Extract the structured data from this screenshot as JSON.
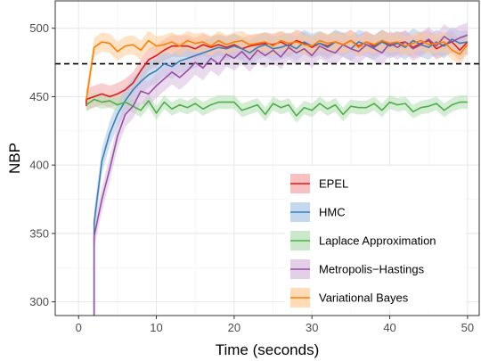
{
  "chart_data": {
    "type": "line",
    "title": "",
    "xlabel": "Time (seconds)",
    "ylabel": "NBP",
    "xlim": [
      -3,
      51.5
    ],
    "ylim": [
      290,
      520
    ],
    "xticks": [
      0,
      10,
      20,
      30,
      40,
      50
    ],
    "yticks": [
      300,
      350,
      400,
      450,
      500
    ],
    "grid": true,
    "legend_position": "bottom-right",
    "reference_line": {
      "y": 474,
      "style": "dashed",
      "color": "#000000"
    },
    "series": [
      {
        "name": "EPEL",
        "color": "#e41a1c",
        "band_color": "#f4a6a7",
        "x": [
          1,
          2,
          3,
          4,
          5,
          6,
          7,
          8,
          9,
          10,
          11,
          12,
          13,
          14,
          15,
          16,
          17,
          18,
          19,
          20,
          21,
          22,
          23,
          24,
          25,
          26,
          27,
          28,
          29,
          30,
          31,
          32,
          33,
          34,
          35,
          36,
          37,
          38,
          39,
          40,
          41,
          42,
          43,
          44,
          45,
          46,
          47,
          48,
          49,
          50
        ],
        "y": [
          448,
          450,
          452,
          450,
          452,
          455,
          460,
          469,
          477,
          480,
          484,
          487,
          487,
          487,
          485,
          488,
          486,
          488,
          486,
          488,
          485,
          487,
          488,
          489,
          488,
          490,
          487,
          491,
          489,
          486,
          489,
          487,
          490,
          488,
          491,
          487,
          490,
          487,
          491,
          488,
          489,
          490,
          486,
          489,
          491,
          485,
          488,
          490,
          484,
          490
        ],
        "band": 8
      },
      {
        "name": "HMC",
        "color": "#377eb8",
        "band_color": "#a9c7e6",
        "x": [
          2,
          3,
          4,
          5,
          6,
          7,
          8,
          9,
          10,
          11,
          12,
          13,
          14,
          15,
          16,
          17,
          18,
          19,
          20,
          21,
          22,
          23,
          24,
          25,
          26,
          27,
          28,
          29,
          30,
          31,
          32,
          33,
          34,
          35,
          36,
          37,
          38,
          39,
          40,
          41,
          42,
          43,
          44,
          45,
          46,
          47,
          48,
          49,
          50
        ],
        "y": [
          358,
          403,
          423,
          437,
          447,
          455,
          461,
          466,
          469,
          474,
          472,
          476,
          478,
          480,
          482,
          484,
          486,
          485,
          487,
          485,
          482,
          486,
          488,
          485,
          486,
          488,
          485,
          490,
          487,
          489,
          486,
          490,
          488,
          485,
          490,
          488,
          486,
          490,
          487,
          489,
          486,
          491,
          488,
          486,
          490,
          487,
          492,
          489,
          490
        ],
        "band": 9
      },
      {
        "name": "Laplace Approximation",
        "color": "#4daf4a",
        "band_color": "#b5dfb3",
        "x": [
          1,
          2,
          3,
          4,
          5,
          6,
          7,
          8,
          9,
          10,
          11,
          12,
          13,
          14,
          15,
          16,
          17,
          18,
          19,
          20,
          21,
          22,
          23,
          24,
          25,
          26,
          27,
          28,
          29,
          30,
          31,
          32,
          33,
          34,
          35,
          36,
          37,
          38,
          39,
          40,
          41,
          42,
          43,
          44,
          45,
          46,
          47,
          48,
          49,
          50
        ],
        "y": [
          444,
          448,
          446,
          447,
          444,
          446,
          443,
          440,
          447,
          438,
          446,
          441,
          444,
          442,
          445,
          441,
          444,
          446,
          446,
          446,
          440,
          442,
          444,
          437,
          445,
          442,
          444,
          436,
          442,
          440,
          445,
          441,
          444,
          437,
          443,
          442,
          442,
          445,
          440,
          446,
          444,
          445,
          439,
          442,
          443,
          445,
          440,
          444,
          446,
          446
        ],
        "band": 5
      },
      {
        "name": "Metropolis−Hastings",
        "color": "#984ea3",
        "band_color": "#d9bbdf",
        "x": [
          2,
          3,
          4,
          5,
          6,
          7,
          8,
          9,
          10,
          11,
          12,
          13,
          14,
          15,
          16,
          17,
          18,
          19,
          20,
          21,
          22,
          23,
          24,
          25,
          26,
          27,
          28,
          29,
          30,
          31,
          32,
          33,
          34,
          35,
          36,
          37,
          38,
          39,
          40,
          41,
          42,
          43,
          44,
          45,
          46,
          47,
          48,
          49,
          50
        ],
        "y": [
          348,
          375,
          397,
          421,
          437,
          443,
          454,
          452,
          458,
          463,
          468,
          464,
          469,
          475,
          471,
          478,
          474,
          481,
          478,
          483,
          477,
          484,
          480,
          484,
          479,
          486,
          482,
          485,
          480,
          487,
          484,
          482,
          488,
          485,
          483,
          488,
          485,
          482,
          489,
          486,
          490,
          485,
          488,
          492,
          487,
          494,
          490,
          493,
          495
        ],
        "band": 9
      },
      {
        "name": "Variational Bayes",
        "color": "#ff7f00",
        "band_color": "#ffcc99",
        "x": [
          1,
          2,
          3,
          4,
          5,
          6,
          7,
          8,
          9,
          10,
          11,
          12,
          13,
          14,
          15,
          16,
          17,
          18,
          19,
          20,
          21,
          22,
          23,
          24,
          25,
          26,
          27,
          28,
          29,
          30,
          31,
          32,
          33,
          34,
          35,
          36,
          37,
          38,
          39,
          40,
          41,
          42,
          43,
          44,
          45,
          46,
          47,
          48,
          49,
          50
        ],
        "y": [
          448,
          486,
          490,
          489,
          483,
          487,
          488,
          484,
          491,
          487,
          488,
          490,
          487,
          491,
          489,
          490,
          487,
          491,
          488,
          490,
          491,
          488,
          489,
          490,
          487,
          491,
          489,
          490,
          488,
          487,
          491,
          489,
          490,
          488,
          491,
          486,
          490,
          488,
          491,
          489,
          490,
          487,
          489,
          491,
          488,
          489,
          490,
          484,
          481,
          488
        ],
        "band": 7
      }
    ],
    "line_start_points": [
      {
        "series": "EPEL",
        "x": 1,
        "y": 443
      },
      {
        "series": "HMC",
        "x": 2,
        "y": 280
      },
      {
        "series": "Metropolis−Hastings",
        "x": 2,
        "y": 280
      }
    ]
  }
}
